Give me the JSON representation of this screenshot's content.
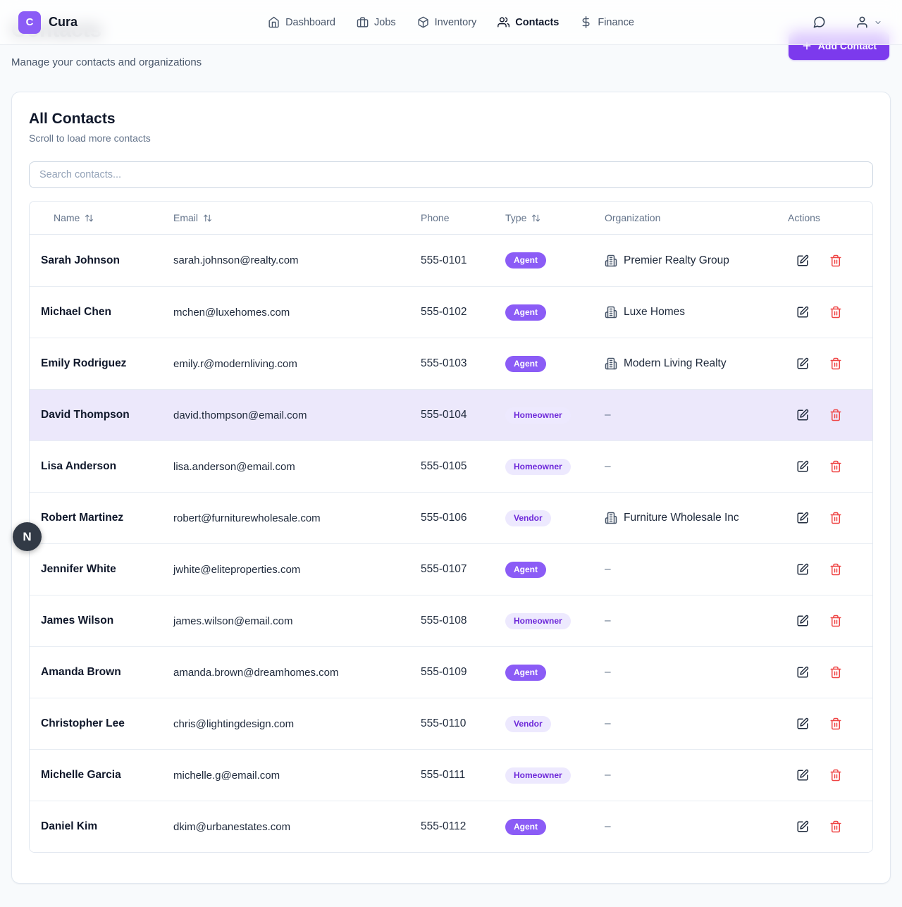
{
  "brand": {
    "logo_letter": "C",
    "name": "Cura"
  },
  "nav": {
    "items": [
      {
        "label": "Dashboard",
        "icon": "home-icon",
        "active": false
      },
      {
        "label": "Jobs",
        "icon": "briefcase-icon",
        "active": false
      },
      {
        "label": "Inventory",
        "icon": "package-icon",
        "active": false
      },
      {
        "label": "Contacts",
        "icon": "users-icon",
        "active": true
      },
      {
        "label": "Finance",
        "icon": "dollar-icon",
        "active": false
      }
    ]
  },
  "page": {
    "title": "Contacts",
    "subtitle": "Manage your contacts and organizations",
    "add_button_label": "Add Contact"
  },
  "card": {
    "title": "All Contacts",
    "subtitle": "Scroll to load more contacts",
    "search_placeholder": "Search contacts..."
  },
  "table": {
    "columns": [
      {
        "label": "Name",
        "sortable": true
      },
      {
        "label": "Email",
        "sortable": true
      },
      {
        "label": "Phone",
        "sortable": false
      },
      {
        "label": "Type",
        "sortable": true
      },
      {
        "label": "Organization",
        "sortable": false
      },
      {
        "label": "Actions",
        "sortable": false
      }
    ],
    "empty_org": "–",
    "rows": [
      {
        "name": "Sarah Johnson",
        "email": "sarah.johnson@realty.com",
        "phone": "555-0101",
        "type": "Agent",
        "type_variant": "solid",
        "organization": "Premier Realty Group",
        "highlighted": false
      },
      {
        "name": "Michael Chen",
        "email": "mchen@luxehomes.com",
        "phone": "555-0102",
        "type": "Agent",
        "type_variant": "solid",
        "organization": "Luxe Homes",
        "highlighted": false
      },
      {
        "name": "Emily Rodriguez",
        "email": "emily.r@modernliving.com",
        "phone": "555-0103",
        "type": "Agent",
        "type_variant": "solid",
        "organization": "Modern Living Realty",
        "highlighted": false
      },
      {
        "name": "David Thompson",
        "email": "david.thompson@email.com",
        "phone": "555-0104",
        "type": "Homeowner",
        "type_variant": "soft",
        "organization": null,
        "highlighted": true
      },
      {
        "name": "Lisa Anderson",
        "email": "lisa.anderson@email.com",
        "phone": "555-0105",
        "type": "Homeowner",
        "type_variant": "soft",
        "organization": null,
        "highlighted": false
      },
      {
        "name": "Robert Martinez",
        "email": "robert@furniturewholesale.com",
        "phone": "555-0106",
        "type": "Vendor",
        "type_variant": "soft",
        "organization": "Furniture Wholesale Inc",
        "highlighted": false
      },
      {
        "name": "Jennifer White",
        "email": "jwhite@eliteproperties.com",
        "phone": "555-0107",
        "type": "Agent",
        "type_variant": "solid",
        "organization": null,
        "highlighted": false
      },
      {
        "name": "James Wilson",
        "email": "james.wilson@email.com",
        "phone": "555-0108",
        "type": "Homeowner",
        "type_variant": "soft",
        "organization": null,
        "highlighted": false
      },
      {
        "name": "Amanda Brown",
        "email": "amanda.brown@dreamhomes.com",
        "phone": "555-0109",
        "type": "Agent",
        "type_variant": "solid",
        "organization": null,
        "highlighted": false
      },
      {
        "name": "Christopher Lee",
        "email": "chris@lightingdesign.com",
        "phone": "555-0110",
        "type": "Vendor",
        "type_variant": "soft",
        "organization": null,
        "highlighted": false
      },
      {
        "name": "Michelle Garcia",
        "email": "michelle.g@email.com",
        "phone": "555-0111",
        "type": "Homeowner",
        "type_variant": "soft",
        "organization": null,
        "highlighted": false
      },
      {
        "name": "Daniel Kim",
        "email": "dkim@urbanestates.com",
        "phone": "555-0112",
        "type": "Agent",
        "type_variant": "solid",
        "organization": null,
        "highlighted": false
      }
    ]
  },
  "overlay": {
    "badge_letter": "N"
  },
  "colors": {
    "accent": "#7c3aed",
    "badge_solid": "#8b5cf6",
    "badge_soft_bg": "#ede9fe",
    "badge_soft_text": "#6d28d9",
    "danger": "#ef4444",
    "row_highlight": "#ece8fb"
  }
}
